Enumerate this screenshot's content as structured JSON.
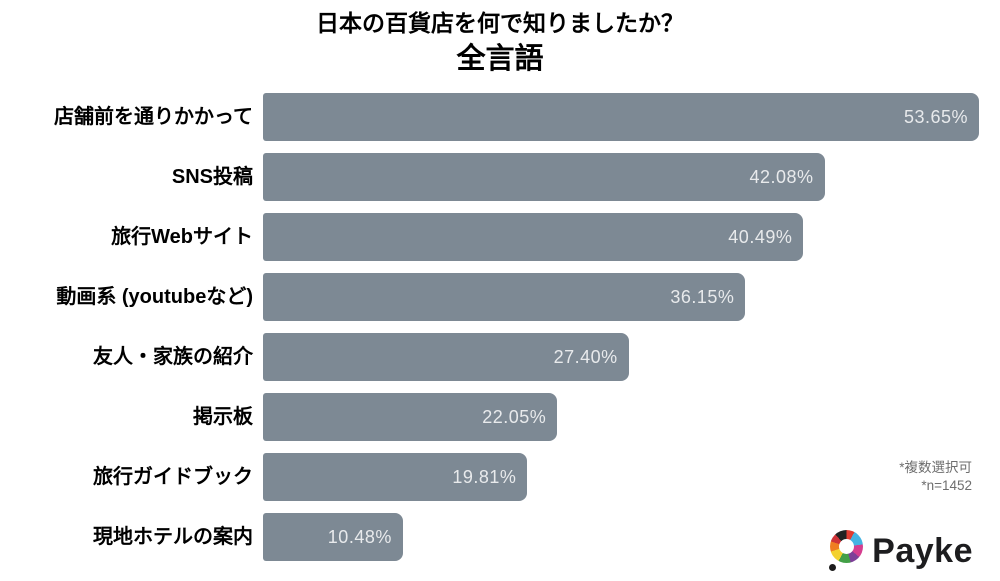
{
  "chart_data": {
    "type": "bar",
    "orientation": "horizontal",
    "title": "日本の百貨店を何で知りましたか？",
    "subtitle": "全言語",
    "categories": [
      "店舗前を通りかかって",
      "SNS投稿",
      "旅行Webサイト",
      "動画系 (youtubeなど)",
      "友人・家族の紹介",
      "掲示板",
      "旅行ガイドブック",
      "現地ホテルの案内"
    ],
    "values": [
      53.65,
      42.08,
      40.49,
      36.15,
      27.4,
      22.05,
      19.81,
      10.48
    ],
    "value_labels": [
      "53.65%",
      "42.08%",
      "40.49%",
      "36.15%",
      "27.40%",
      "22.05%",
      "19.81%",
      "10.48%"
    ],
    "xlim": [
      0,
      53.65
    ],
    "grid": false,
    "legend": false,
    "value_label_position": "inside-end",
    "annotations": [
      "*複数選択可",
      "*n=1452"
    ]
  },
  "logo": {
    "brand": "Payke"
  },
  "colors": {
    "bar": "#7d8994",
    "value_text": "#e8eaec",
    "label_text": "#000000",
    "note_text": "#6e6e6e",
    "brand_text": "#1d1d1f",
    "ring_colors": [
      "#e03c31",
      "#45b4e3",
      "#d53d8f",
      "#7e3f98",
      "#43a047",
      "#f3d130",
      "#ef7d22",
      "#cf3339",
      "#222222"
    ],
    "dot": "#1c1c1c"
  }
}
